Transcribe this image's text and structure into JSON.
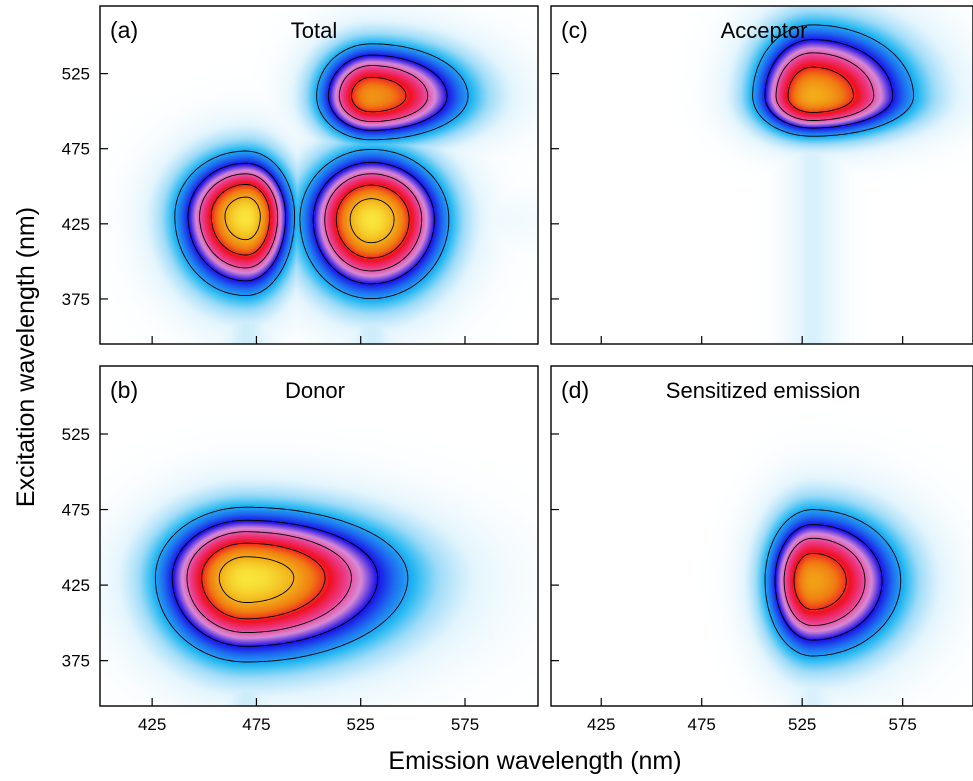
{
  "figure": {
    "xlabel": "Emission wavelength (nm)",
    "ylabel": "Excitation wavelength (nm)"
  },
  "colors": {
    "plot_bg": "#ffffff",
    "frame": "#000000",
    "contour_line": "#000000",
    "colormap": [
      "#ffffff",
      "#e4f5fd",
      "#9fdcf8",
      "#24b8f2",
      "#1e6cf0",
      "#1a0fe6",
      "#d98ad6",
      "#ec3a8a",
      "#f01020",
      "#f07a12",
      "#f2b21a",
      "#f9e63a"
    ]
  },
  "chart_data": [
    {
      "type": "heatmap",
      "panel": "(a)",
      "title": "Total",
      "xlabel": "Emission wavelength (nm)",
      "ylabel": "Excitation wavelength (nm)",
      "xlim": [
        400,
        610
      ],
      "ylim": [
        345,
        570
      ],
      "xticks": [
        425,
        475,
        525,
        575
      ],
      "yticks": [
        375,
        425,
        475,
        525
      ],
      "grid": false,
      "peaks": [
        {
          "x": 470,
          "y": 430,
          "intensity": 1.0
        },
        {
          "x": 530,
          "y": 428,
          "intensity": 1.0
        },
        {
          "x": 530,
          "y": 510,
          "intensity": 0.86
        }
      ],
      "contour_levels": [
        0.3,
        0.45,
        0.6,
        0.75,
        0.9
      ]
    },
    {
      "type": "heatmap",
      "panel": "(b)",
      "title": "Donor",
      "xlabel": "Emission wavelength (nm)",
      "ylabel": "Excitation wavelength (nm)",
      "xlim": [
        400,
        610
      ],
      "ylim": [
        345,
        570
      ],
      "xticks": [
        425,
        475,
        525,
        575
      ],
      "yticks": [
        375,
        425,
        475,
        525
      ],
      "grid": false,
      "peaks": [
        {
          "x": 470,
          "y": 430,
          "intensity": 1.0
        }
      ],
      "contour_levels": [
        0.3,
        0.45,
        0.6,
        0.75,
        0.9
      ]
    },
    {
      "type": "heatmap",
      "panel": "(c)",
      "title": "Acceptor",
      "xlabel": "Emission wavelength (nm)",
      "ylabel": "Excitation wavelength (nm)",
      "xlim": [
        400,
        610
      ],
      "ylim": [
        345,
        570
      ],
      "xticks": [
        425,
        475,
        525,
        575
      ],
      "yticks": [
        375,
        425,
        475,
        525
      ],
      "grid": false,
      "peaks": [
        {
          "x": 530,
          "y": 510,
          "intensity": 0.9
        }
      ],
      "contour_levels": [
        0.3,
        0.45,
        0.6,
        0.75,
        0.9
      ]
    },
    {
      "type": "heatmap",
      "panel": "(d)",
      "title": "Sensitized emission",
      "xlabel": "Emission wavelength (nm)",
      "ylabel": "Excitation wavelength (nm)",
      "xlim": [
        400,
        610
      ],
      "ylim": [
        345,
        570
      ],
      "xticks": [
        425,
        475,
        525,
        575
      ],
      "yticks": [
        375,
        425,
        475,
        525
      ],
      "grid": false,
      "peaks": [
        {
          "x": 530,
          "y": 428,
          "intensity": 0.88
        }
      ],
      "contour_levels": [
        0.3,
        0.45,
        0.6,
        0.75,
        0.9
      ]
    }
  ]
}
